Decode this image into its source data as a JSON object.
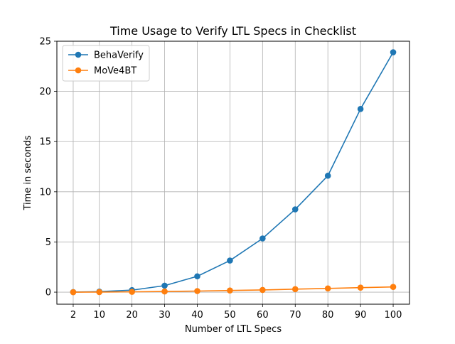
{
  "chart_data": {
    "type": "line",
    "title": "Time Usage to Verify LTL Specs in Checklist",
    "xlabel": "Number of LTL Specs",
    "ylabel": "Time in seconds",
    "x": [
      2,
      10,
      20,
      30,
      40,
      50,
      60,
      70,
      80,
      90,
      100
    ],
    "xticks": [
      2,
      10,
      20,
      30,
      40,
      50,
      60,
      70,
      80,
      90,
      100
    ],
    "yticks": [
      0,
      5,
      10,
      15,
      20,
      25
    ],
    "xlim": [
      -3,
      105
    ],
    "ylim": [
      -1.2,
      25
    ],
    "grid": true,
    "legend_position": "top-left",
    "series": [
      {
        "name": "BehaVerify",
        "color": "#1f77b4",
        "values": [
          0.01,
          0.05,
          0.2,
          0.65,
          1.58,
          3.15,
          5.35,
          8.25,
          11.6,
          18.25,
          23.9
        ]
      },
      {
        "name": "MoVe4BT",
        "color": "#ff7f0e",
        "values": [
          0.0,
          0.01,
          0.03,
          0.07,
          0.11,
          0.17,
          0.22,
          0.3,
          0.37,
          0.45,
          0.52
        ]
      }
    ]
  }
}
